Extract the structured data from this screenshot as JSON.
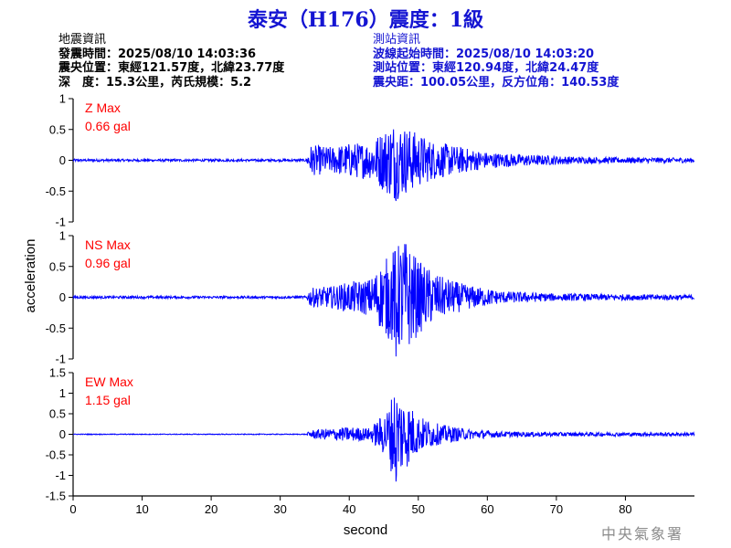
{
  "title": "泰安（H176）震度：1級",
  "quake_info": {
    "header": "地震資訊",
    "origin_time": "發震時間：2025/08/10 14:03:36",
    "epicenter": "震央位置：東經121.57度，北緯23.77度",
    "depth_magnitude": "深　度：15.3公里，芮氏規模：5.2"
  },
  "station_info": {
    "header": "測站資訊",
    "wave_start": "波線起始時間：2025/08/10 14:03:20",
    "station_location": "測站位置：東經120.94度，北緯24.47度",
    "distance_azimuth": "震央距：100.05公里，反方位角：140.53度"
  },
  "watermark": "中央氣象署",
  "colors": {
    "trace": "#0000ff",
    "title": "#1414d2",
    "max_label": "#ff0000",
    "axis": "#000000"
  },
  "chart_data": {
    "type": "line",
    "xlabel": "second",
    "ylabel": "acceleration",
    "xlim": [
      0,
      90
    ],
    "x_ticks": [
      "0",
      "10",
      "20",
      "30",
      "40",
      "50",
      "60",
      "70",
      "80"
    ],
    "x_tick_values": [
      0,
      10,
      20,
      30,
      40,
      50,
      60,
      70,
      80
    ],
    "panels": [
      {
        "name": "Z",
        "max_label": "Z Max",
        "max_value": "0.66 gal",
        "ylim": [
          -1,
          1
        ],
        "y_ticks": [
          "1",
          "0.5",
          "0",
          "-0.5",
          "-1"
        ],
        "y_tick_values": [
          1,
          0.5,
          0,
          -0.5,
          -1
        ],
        "peak": 0.66,
        "envelope": [
          [
            0,
            0.02
          ],
          [
            33.8,
            0.02
          ],
          [
            34.3,
            0.25
          ],
          [
            37.5,
            0.22
          ],
          [
            40,
            0.28
          ],
          [
            43,
            0.3
          ],
          [
            46.5,
            0.66
          ],
          [
            49,
            0.5
          ],
          [
            52,
            0.32
          ],
          [
            56,
            0.22
          ],
          [
            60,
            0.13
          ],
          [
            66,
            0.09
          ],
          [
            75,
            0.05
          ],
          [
            90,
            0.04
          ]
        ]
      },
      {
        "name": "NS",
        "max_label": "NS Max",
        "max_value": "0.96 gal",
        "ylim": [
          -1,
          1
        ],
        "y_ticks": [
          "1",
          "0.5",
          "0",
          "-0.5",
          "-1"
        ],
        "y_tick_values": [
          1,
          0.5,
          0,
          -0.5,
          -1
        ],
        "peak": 0.96,
        "envelope": [
          [
            0,
            0.02
          ],
          [
            33.8,
            0.02
          ],
          [
            34.3,
            0.15
          ],
          [
            37.5,
            0.18
          ],
          [
            40,
            0.25
          ],
          [
            43,
            0.3
          ],
          [
            46.5,
            0.8
          ],
          [
            48,
            0.96
          ],
          [
            50,
            0.6
          ],
          [
            53,
            0.35
          ],
          [
            57,
            0.2
          ],
          [
            62,
            0.1
          ],
          [
            70,
            0.06
          ],
          [
            90,
            0.04
          ]
        ]
      },
      {
        "name": "EW",
        "max_label": "EW Max",
        "max_value": "1.15 gal",
        "ylim": [
          -1.5,
          1.5
        ],
        "y_ticks": [
          "1.5",
          "1",
          "0.5",
          "0",
          "-0.5",
          "-1",
          "-1.5"
        ],
        "y_tick_values": [
          1.5,
          1,
          0.5,
          0,
          -0.5,
          -1,
          -1.5
        ],
        "peak": 1.15,
        "envelope": [
          [
            0,
            0.01
          ],
          [
            33.8,
            0.01
          ],
          [
            34.3,
            0.1
          ],
          [
            37.5,
            0.15
          ],
          [
            40,
            0.18
          ],
          [
            43,
            0.15
          ],
          [
            45.5,
            0.6
          ],
          [
            46.5,
            1.15
          ],
          [
            48,
            0.9
          ],
          [
            50,
            0.45
          ],
          [
            53,
            0.25
          ],
          [
            57,
            0.13
          ],
          [
            62,
            0.07
          ],
          [
            70,
            0.05
          ],
          [
            90,
            0.04
          ]
        ]
      }
    ]
  }
}
